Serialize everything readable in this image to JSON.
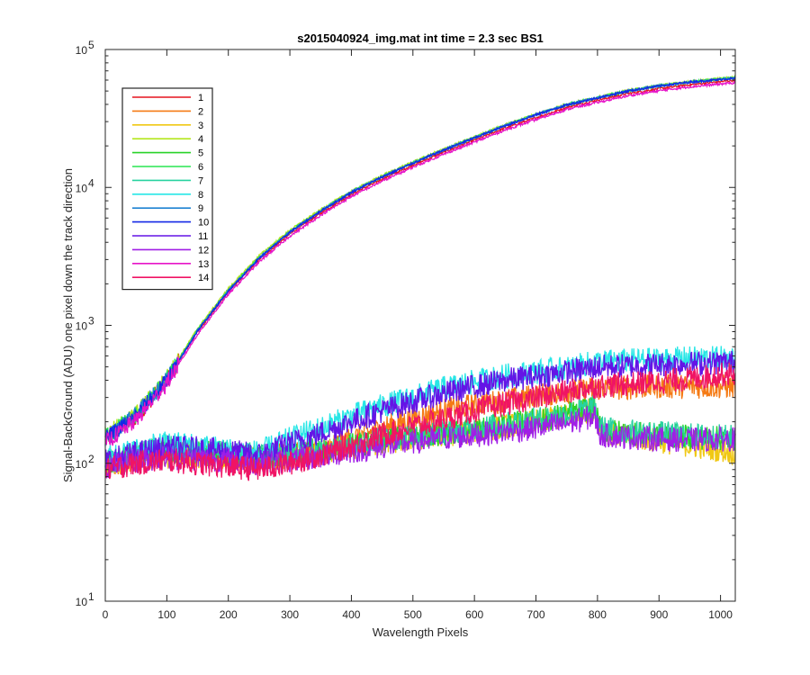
{
  "chart_data": {
    "type": "line",
    "title": "s2015040924_img.mat int time = 2.3 sec   BS1",
    "xlabel": "Wavelength Pixels",
    "ylabel": "Signal-BackGround (ADU) one pixel down the track direction",
    "xlim": [
      0,
      1024
    ],
    "ylim": [
      10,
      100000
    ],
    "yscale": "log",
    "x_ticks": [
      0,
      100,
      200,
      300,
      400,
      500,
      600,
      700,
      800,
      900,
      1000
    ],
    "y_ticks": [
      10,
      100,
      1000,
      10000,
      100000
    ],
    "y_tick_base": "10",
    "y_tick_exponents": [
      "1",
      "2",
      "3",
      "4",
      "5"
    ],
    "grid": false,
    "legend_position": "top-left",
    "x_sample_points": [
      0,
      50,
      100,
      150,
      200,
      250,
      300,
      350,
      400,
      450,
      500,
      550,
      600,
      650,
      700,
      750,
      780,
      795,
      805,
      850,
      900,
      950,
      1024
    ],
    "series": [
      {
        "name": "1",
        "color": "#e6141e",
        "values": [
          150,
          215,
          400,
          900,
          1750,
          3000,
          4600,
          6500,
          8900,
          11500,
          14500,
          18000,
          22000,
          27000,
          32000,
          38000,
          41000,
          42500,
          43500,
          48000,
          52000,
          55500,
          60000
        ]
      },
      {
        "name": "2",
        "color": "#f57a14",
        "values": [
          95,
          110,
          120,
          118,
          115,
          110,
          115,
          125,
          150,
          180,
          210,
          240,
          265,
          285,
          310,
          330,
          340,
          345,
          350,
          355,
          360,
          360,
          360
        ]
      },
      {
        "name": "3",
        "color": "#f0c814",
        "values": [
          95,
          110,
          115,
          112,
          110,
          108,
          112,
          118,
          130,
          140,
          150,
          160,
          170,
          185,
          200,
          220,
          240,
          250,
          170,
          155,
          145,
          135,
          120
        ]
      },
      {
        "name": "4",
        "color": "#b4e61e",
        "values": [
          160,
          230,
          420,
          950,
          1850,
          3200,
          4900,
          6900,
          9400,
          12200,
          15300,
          19000,
          23200,
          28500,
          34000,
          40000,
          43000,
          44500,
          45500,
          50500,
          55000,
          58500,
          63000
        ]
      },
      {
        "name": "5",
        "color": "#28d228",
        "values": [
          100,
          115,
          125,
          120,
          115,
          110,
          115,
          120,
          135,
          145,
          155,
          165,
          175,
          190,
          205,
          225,
          245,
          255,
          175,
          165,
          160,
          155,
          150
        ]
      },
      {
        "name": "6",
        "color": "#28e650",
        "values": [
          155,
          225,
          410,
          930,
          1800,
          3100,
          4800,
          6800,
          9300,
          12000,
          15100,
          18800,
          23000,
          28200,
          33800,
          39800,
          42800,
          44300,
          45300,
          50200,
          54600,
          58200,
          62500
        ]
      },
      {
        "name": "7",
        "color": "#28d2a0",
        "values": [
          100,
          118,
          130,
          125,
          120,
          115,
          120,
          125,
          138,
          148,
          158,
          168,
          178,
          192,
          208,
          228,
          248,
          260,
          180,
          170,
          165,
          160,
          155
        ]
      },
      {
        "name": "8",
        "color": "#28e6e6",
        "values": [
          110,
          125,
          140,
          135,
          125,
          120,
          150,
          180,
          220,
          260,
          300,
          350,
          390,
          430,
          460,
          490,
          520,
          540,
          545,
          555,
          565,
          575,
          580
        ]
      },
      {
        "name": "9",
        "color": "#1e82d2",
        "values": [
          152,
          222,
          405,
          920,
          1790,
          3080,
          4760,
          6750,
          9250,
          11950,
          15050,
          18700,
          22900,
          28100,
          33700,
          39700,
          42700,
          44200,
          45200,
          50100,
          54500,
          58100,
          62300
        ]
      },
      {
        "name": "10",
        "color": "#1428e6",
        "values": [
          150,
          220,
          400,
          910,
          1780,
          3060,
          4740,
          6720,
          9200,
          11900,
          15000,
          18650,
          22850,
          28000,
          33600,
          39600,
          42600,
          44100,
          45100,
          50000,
          54400,
          58000,
          62000
        ]
      },
      {
        "name": "11",
        "color": "#6414e6",
        "values": [
          105,
          118,
          130,
          128,
          122,
          115,
          140,
          165,
          200,
          240,
          280,
          320,
          360,
          400,
          430,
          460,
          480,
          495,
          500,
          510,
          520,
          530,
          540
        ]
      },
      {
        "name": "12",
        "color": "#a01ee6",
        "values": [
          95,
          105,
          110,
          108,
          105,
          100,
          105,
          112,
          122,
          132,
          142,
          152,
          160,
          170,
          180,
          195,
          210,
          220,
          160,
          155,
          150,
          148,
          150
        ]
      },
      {
        "name": "13",
        "color": "#e614c8",
        "values": [
          140,
          205,
          380,
          860,
          1680,
          2880,
          4430,
          6270,
          8600,
          11100,
          14000,
          17400,
          21300,
          26100,
          31000,
          36800,
          39500,
          40900,
          41800,
          46200,
          50200,
          53600,
          57500
        ]
      },
      {
        "name": "14",
        "color": "#f01464",
        "values": [
          90,
          100,
          105,
          100,
          95,
          90,
          100,
          115,
          135,
          160,
          185,
          210,
          240,
          270,
          300,
          330,
          350,
          360,
          365,
          375,
          390,
          410,
          450
        ]
      }
    ]
  }
}
